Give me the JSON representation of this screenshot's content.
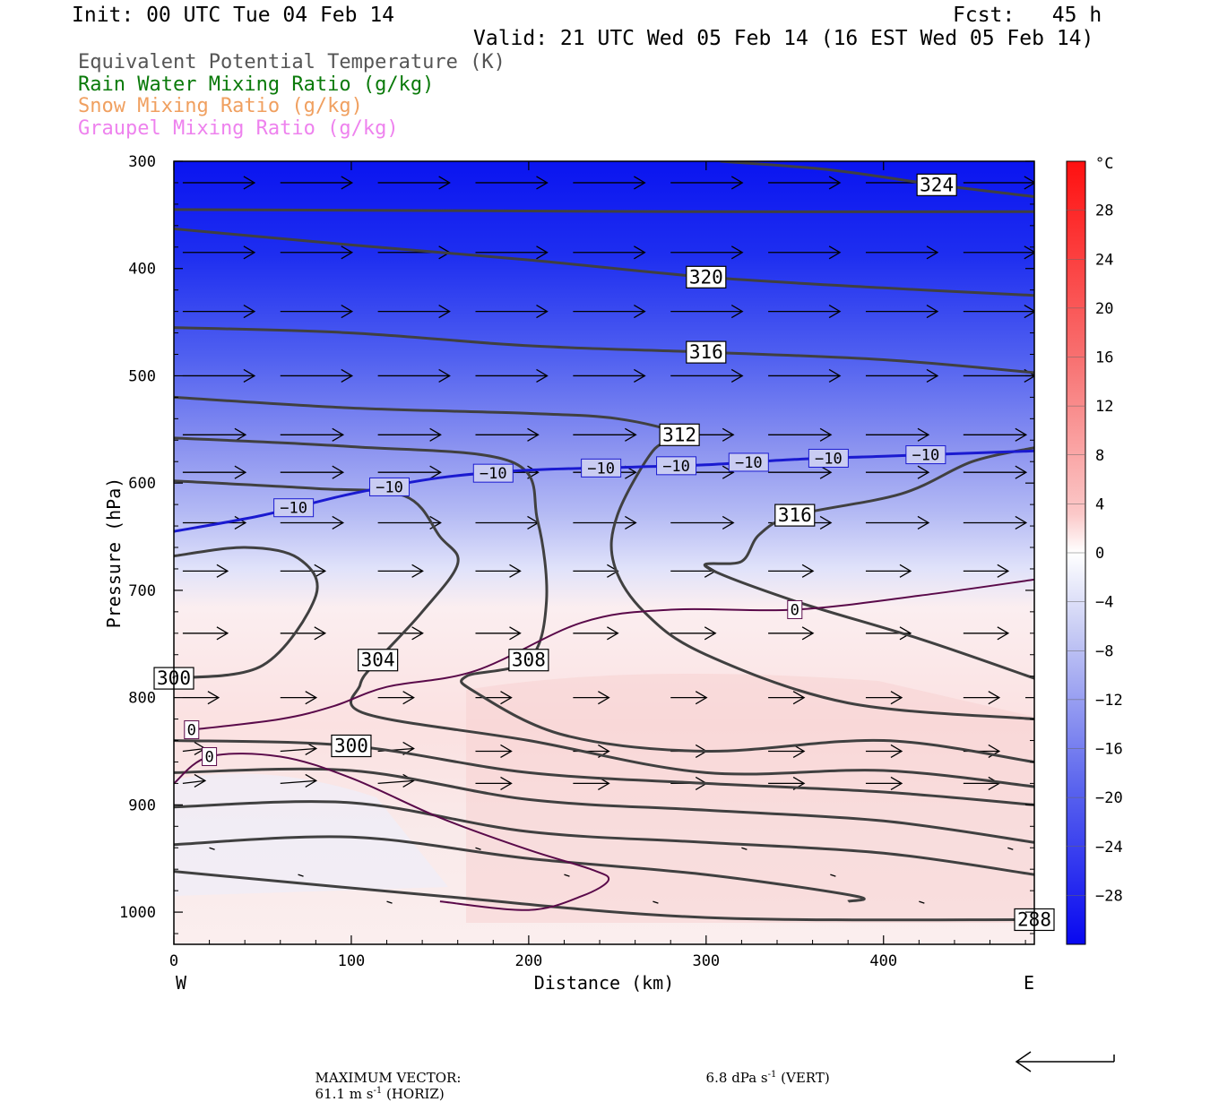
{
  "header": {
    "init": "Init: 00 UTC Tue 04 Feb 14",
    "fcst": "Fcst:   45 h",
    "valid": "Valid: 21 UTC Wed 05 Feb 14 (16 EST Wed 05 Feb 14)"
  },
  "legend": [
    {
      "text": "Equivalent Potential Temperature (K)",
      "color": "#555555"
    },
    {
      "text": "Rain Water Mixing Ratio (g/kg)",
      "color": "#0a7a0a"
    },
    {
      "text": "Snow Mixing Ratio (g/kg)",
      "color": "#f0a060"
    },
    {
      "text": "Graupel Mixing Ratio (g/kg)",
      "color": "#ee82ee"
    }
  ],
  "footer": {
    "max_label": "MAXIMUM VECTOR:",
    "horiz_value": "61.1",
    "horiz_unit": "m s",
    "horiz_tag": "(HORIZ)",
    "vert_value": "6.8",
    "vert_unit": "dPa s",
    "vert_tag": "(VERT)",
    "exponent": "-1"
  },
  "chart_data": {
    "type": "contour",
    "xlabel": "Distance (km)",
    "ylabel": "Pressure (hPa)",
    "xlim": [
      0,
      485
    ],
    "ylim": [
      1030,
      300
    ],
    "x_ticks": [
      0,
      100,
      200,
      300,
      400
    ],
    "y_ticks": [
      300,
      400,
      500,
      600,
      700,
      800,
      900,
      1000
    ],
    "x_end_labels": {
      "left": "W",
      "right": "E"
    },
    "colorbar": {
      "unit": "°C",
      "ticks": [
        28,
        24,
        20,
        16,
        12,
        8,
        4,
        0,
        -4,
        -8,
        -12,
        -16,
        -20,
        -24,
        -28
      ],
      "range": [
        -32,
        32
      ]
    },
    "theta_e_contours": [
      {
        "label": "324",
        "points": [
          [
            308,
            300
          ],
          [
            370,
            308
          ],
          [
            430,
            322
          ],
          [
            485,
            333
          ]
        ]
      },
      {
        "label": "",
        "points": [
          [
            0,
            345
          ],
          [
            150,
            346
          ],
          [
            300,
            347
          ],
          [
            485,
            347
          ]
        ]
      },
      {
        "label": "320",
        "points": [
          [
            0,
            363
          ],
          [
            100,
            378
          ],
          [
            200,
            392
          ],
          [
            300,
            408
          ],
          [
            400,
            418
          ],
          [
            485,
            425
          ]
        ]
      },
      {
        "label": "316",
        "points": [
          [
            0,
            455
          ],
          [
            100,
            460
          ],
          [
            200,
            472
          ],
          [
            300,
            478
          ],
          [
            400,
            485
          ],
          [
            485,
            497
          ]
        ]
      },
      {
        "label": "312",
        "points": [
          [
            0,
            520
          ],
          [
            100,
            530
          ],
          [
            200,
            535
          ],
          [
            250,
            540
          ],
          [
            285,
            555
          ],
          [
            270,
            570
          ],
          [
            250,
            630
          ],
          [
            248,
            675
          ],
          [
            265,
            720
          ],
          [
            300,
            760
          ],
          [
            380,
            805
          ],
          [
            485,
            820
          ]
        ]
      },
      {
        "label": "316",
        "points": [
          [
            485,
            567
          ],
          [
            450,
            580
          ],
          [
            410,
            610
          ],
          [
            350,
            630
          ],
          [
            330,
            648
          ],
          [
            320,
            673
          ],
          [
            300,
            678
          ],
          [
            350,
            710
          ],
          [
            420,
            745
          ],
          [
            485,
            782
          ]
        ]
      },
      {
        "label": "308",
        "points": [
          [
            0,
            558
          ],
          [
            100,
            566
          ],
          [
            190,
            580
          ],
          [
            205,
            635
          ],
          [
            210,
            710
          ],
          [
            200,
            765
          ],
          [
            165,
            780
          ],
          [
            170,
            795
          ],
          [
            220,
            835
          ],
          [
            300,
            850
          ],
          [
            400,
            840
          ],
          [
            485,
            860
          ]
        ]
      },
      {
        "label": "304",
        "points": [
          [
            0,
            598
          ],
          [
            80,
            605
          ],
          [
            130,
            612
          ],
          [
            150,
            650
          ],
          [
            160,
            675
          ],
          [
            140,
            720
          ],
          [
            115,
            765
          ],
          [
            105,
            788
          ],
          [
            108,
            815
          ],
          [
            200,
            840
          ],
          [
            300,
            870
          ],
          [
            400,
            868
          ],
          [
            485,
            883
          ]
        ]
      },
      {
        "label": "300",
        "points": [
          [
            0,
            782
          ],
          [
            50,
            770
          ],
          [
            80,
            705
          ],
          [
            70,
            670
          ],
          [
            40,
            660
          ],
          [
            0,
            668
          ]
        ]
      },
      {
        "label": "300",
        "points": [
          [
            0,
            840
          ],
          [
            100,
            845
          ],
          [
            200,
            870
          ],
          [
            300,
            880
          ],
          [
            400,
            888
          ],
          [
            485,
            900
          ]
        ]
      },
      {
        "label": "",
        "points": [
          [
            0,
            870
          ],
          [
            100,
            868
          ],
          [
            200,
            895
          ],
          [
            300,
            905
          ],
          [
            400,
            915
          ],
          [
            485,
            935
          ]
        ]
      },
      {
        "label": "",
        "points": [
          [
            0,
            902
          ],
          [
            100,
            898
          ],
          [
            200,
            925
          ],
          [
            300,
            935
          ],
          [
            400,
            945
          ],
          [
            485,
            965
          ]
        ]
      },
      {
        "label": "",
        "points": [
          [
            0,
            937
          ],
          [
            100,
            930
          ],
          [
            200,
            950
          ],
          [
            300,
            965
          ],
          [
            384,
            985
          ],
          [
            380,
            990
          ]
        ]
      },
      {
        "label": "288",
        "points": [
          [
            0,
            962
          ],
          [
            150,
            985
          ],
          [
            300,
            1005
          ],
          [
            485,
            1007
          ]
        ]
      }
    ],
    "temperature_contours": [
      {
        "label": "-10",
        "color": "#1a1ad0",
        "points": [
          [
            0,
            645
          ],
          [
            50,
            630
          ],
          [
            100,
            610
          ],
          [
            150,
            595
          ],
          [
            200,
            588
          ],
          [
            260,
            585
          ],
          [
            300,
            583
          ],
          [
            350,
            578
          ],
          [
            400,
            575
          ],
          [
            485,
            570
          ]
        ]
      },
      {
        "label": "0",
        "color": "#5a0a4a",
        "points": [
          [
            0,
            880
          ],
          [
            20,
            855
          ],
          [
            60,
            855
          ],
          [
            100,
            875
          ],
          [
            150,
            912
          ],
          [
            200,
            942
          ],
          [
            235,
            960
          ],
          [
            245,
            970
          ],
          [
            230,
            985
          ],
          [
            200,
            998
          ],
          [
            150,
            990
          ]
        ]
      },
      {
        "label": "0",
        "color": "#5a0a4a",
        "points": [
          [
            10,
            830
          ],
          [
            60,
            820
          ],
          [
            90,
            808
          ],
          [
            120,
            790
          ],
          [
            170,
            775
          ],
          [
            230,
            730
          ],
          [
            280,
            718
          ],
          [
            350,
            718
          ],
          [
            420,
            705
          ],
          [
            485,
            690
          ]
        ]
      }
    ],
    "wind_vectors_note": "Horizontal wind vectors (mostly westerly) plotted over the section"
  }
}
